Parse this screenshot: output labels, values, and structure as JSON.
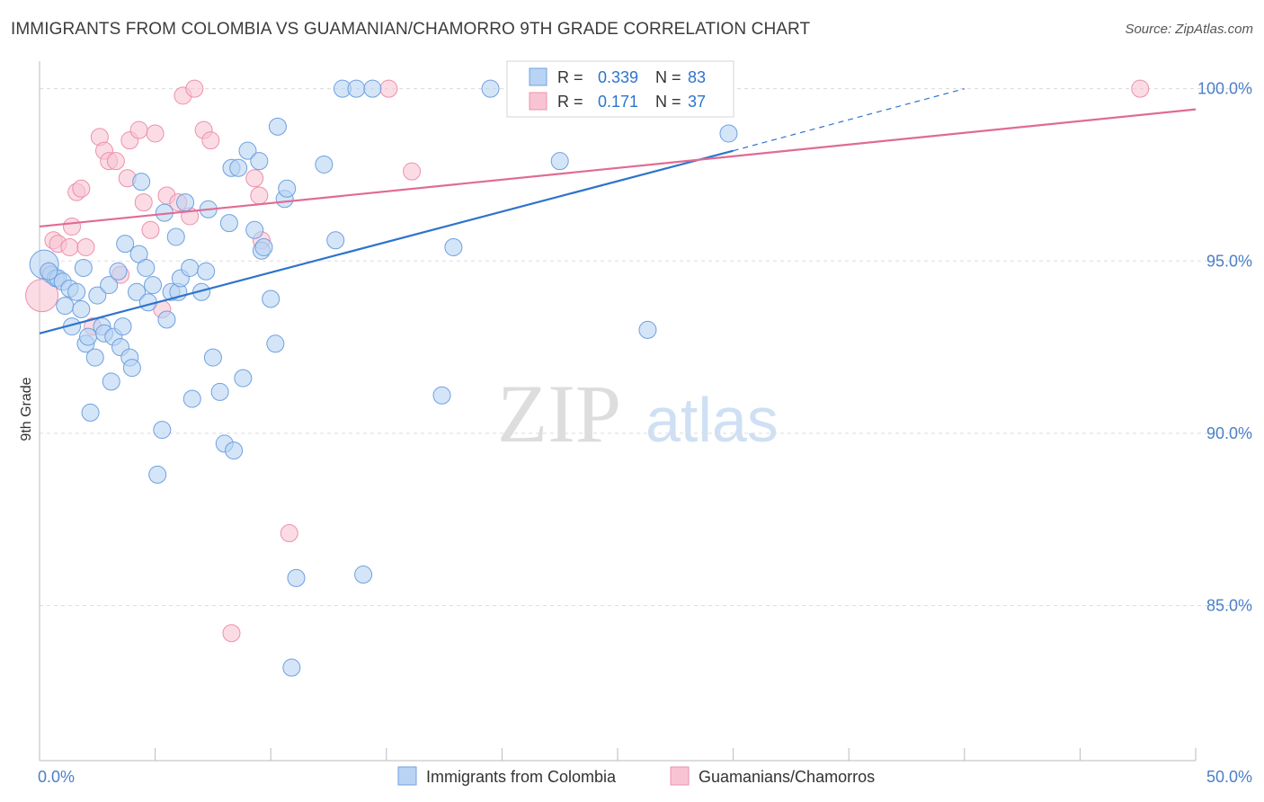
{
  "header": {
    "title": "IMMIGRANTS FROM COLOMBIA VS GUAMANIAN/CHAMORRO 9TH GRADE CORRELATION CHART",
    "source": "Source: ZipAtlas.com"
  },
  "watermark": {
    "zip": "ZIP",
    "atlas": "atlas"
  },
  "colors": {
    "blue_fill": "#b8d3f4",
    "blue_stroke": "#6fa0df",
    "blue_line": "#2d74cc",
    "pink_fill": "#f8c4d3",
    "pink_stroke": "#ec90ab",
    "pink_line": "#e06b93",
    "axis_text": "#4a7fc9",
    "grid": "#dedede"
  },
  "chart_data": {
    "type": "scatter",
    "title": "IMMIGRANTS FROM COLOMBIA VS GUAMANIAN/CHAMORRO 9TH GRADE CORRELATION CHART",
    "xlabel": "",
    "ylabel": "9th Grade",
    "xlim": [
      0,
      50
    ],
    "ylim": [
      80.5,
      100.8
    ],
    "x_tick_labels": [
      "0.0%",
      "50.0%"
    ],
    "y_ticks": [
      85,
      90,
      95,
      100
    ],
    "y_tick_labels": [
      "85.0%",
      "90.0%",
      "95.0%",
      "100.0%"
    ],
    "grid": true,
    "legend_position": "top-center",
    "stats": [
      {
        "series": "Immigrants from Colombia",
        "r_label": "R =",
        "r": "0.339",
        "n_label": "N =",
        "n": "83"
      },
      {
        "series": "Guamanians/Chamorros",
        "r_label": "R =",
        "r": "0.171",
        "n_label": "N =",
        "n": "37"
      }
    ],
    "series": [
      {
        "name": "Immigrants from Colombia",
        "color": "#b8d3f4",
        "trend": {
          "x": [
            0,
            30
          ],
          "y": [
            92.9,
            98.2
          ],
          "dashed_to": [
            40,
            100.0
          ]
        },
        "points": [
          [
            0.2,
            94.9
          ],
          [
            0.5,
            94.6
          ],
          [
            0.7,
            94.5
          ],
          [
            0.8,
            94.5
          ],
          [
            1.0,
            94.4
          ],
          [
            1.1,
            93.7
          ],
          [
            1.3,
            94.2
          ],
          [
            1.4,
            93.1
          ],
          [
            1.6,
            94.1
          ],
          [
            1.8,
            93.6
          ],
          [
            1.9,
            94.8
          ],
          [
            2.0,
            92.6
          ],
          [
            2.1,
            92.8
          ],
          [
            2.2,
            90.6
          ],
          [
            2.4,
            92.2
          ],
          [
            2.5,
            94.0
          ],
          [
            2.7,
            93.1
          ],
          [
            2.8,
            92.9
          ],
          [
            3.0,
            94.3
          ],
          [
            3.1,
            91.5
          ],
          [
            3.2,
            92.8
          ],
          [
            3.4,
            94.7
          ],
          [
            3.5,
            92.5
          ],
          [
            3.7,
            95.5
          ],
          [
            3.9,
            92.2
          ],
          [
            4.0,
            91.9
          ],
          [
            4.2,
            94.1
          ],
          [
            4.3,
            95.2
          ],
          [
            4.4,
            97.3
          ],
          [
            4.6,
            94.8
          ],
          [
            4.7,
            93.8
          ],
          [
            4.9,
            94.3
          ],
          [
            5.1,
            88.8
          ],
          [
            5.3,
            90.1
          ],
          [
            5.4,
            96.4
          ],
          [
            5.5,
            93.3
          ],
          [
            5.7,
            94.1
          ],
          [
            5.9,
            95.7
          ],
          [
            6.0,
            94.1
          ],
          [
            6.1,
            94.5
          ],
          [
            6.3,
            96.7
          ],
          [
            6.5,
            94.8
          ],
          [
            6.6,
            91.0
          ],
          [
            7.0,
            94.1
          ],
          [
            7.2,
            94.7
          ],
          [
            7.3,
            96.5
          ],
          [
            7.5,
            92.2
          ],
          [
            7.8,
            91.2
          ],
          [
            8.0,
            89.7
          ],
          [
            8.2,
            96.1
          ],
          [
            8.3,
            97.7
          ],
          [
            8.4,
            89.5
          ],
          [
            8.6,
            97.7
          ],
          [
            8.8,
            91.6
          ],
          [
            9.0,
            98.2
          ],
          [
            9.3,
            95.9
          ],
          [
            9.5,
            97.9
          ],
          [
            9.6,
            95.3
          ],
          [
            9.7,
            95.4
          ],
          [
            10.0,
            93.9
          ],
          [
            10.2,
            92.6
          ],
          [
            10.3,
            98.9
          ],
          [
            10.6,
            96.8
          ],
          [
            10.7,
            97.1
          ],
          [
            10.9,
            83.2
          ],
          [
            11.1,
            85.8
          ],
          [
            12.3,
            97.8
          ],
          [
            12.8,
            95.6
          ],
          [
            13.1,
            100.0
          ],
          [
            13.7,
            100.0
          ],
          [
            14.0,
            85.9
          ],
          [
            14.4,
            100.0
          ],
          [
            17.4,
            91.1
          ],
          [
            17.9,
            95.4
          ],
          [
            19.5,
            100.0
          ],
          [
            20.9,
            100.0
          ],
          [
            22.5,
            97.9
          ],
          [
            25.3,
            100.0
          ],
          [
            26.3,
            93.0
          ],
          [
            27.7,
            100.0
          ],
          [
            29.8,
            98.7
          ],
          [
            3.6,
            93.1
          ],
          [
            0.4,
            94.7
          ]
        ]
      },
      {
        "name": "Guamanians/Chamorros",
        "color": "#f8c4d3",
        "trend": {
          "x": [
            0,
            50
          ],
          "y": [
            96.0,
            99.4
          ]
        },
        "points": [
          [
            0.1,
            94.0
          ],
          [
            0.4,
            94.7
          ],
          [
            0.6,
            95.6
          ],
          [
            0.8,
            95.5
          ],
          [
            1.3,
            95.4
          ],
          [
            1.4,
            96.0
          ],
          [
            1.6,
            97.0
          ],
          [
            1.8,
            97.1
          ],
          [
            2.0,
            95.4
          ],
          [
            2.3,
            93.1
          ],
          [
            2.6,
            98.6
          ],
          [
            2.8,
            98.2
          ],
          [
            3.0,
            97.9
          ],
          [
            3.3,
            97.9
          ],
          [
            3.5,
            94.6
          ],
          [
            3.8,
            97.4
          ],
          [
            3.9,
            98.5
          ],
          [
            4.3,
            98.8
          ],
          [
            4.5,
            96.7
          ],
          [
            4.8,
            95.9
          ],
          [
            5.0,
            98.7
          ],
          [
            5.3,
            93.6
          ],
          [
            5.5,
            96.9
          ],
          [
            6.0,
            96.7
          ],
          [
            6.2,
            99.8
          ],
          [
            6.5,
            96.3
          ],
          [
            6.7,
            100.0
          ],
          [
            7.1,
            98.8
          ],
          [
            7.4,
            98.5
          ],
          [
            8.3,
            84.2
          ],
          [
            9.3,
            97.4
          ],
          [
            9.5,
            96.9
          ],
          [
            9.6,
            95.6
          ],
          [
            10.8,
            87.1
          ],
          [
            15.1,
            100.0
          ],
          [
            16.1,
            97.6
          ],
          [
            47.6,
            100.0
          ]
        ]
      }
    ]
  }
}
